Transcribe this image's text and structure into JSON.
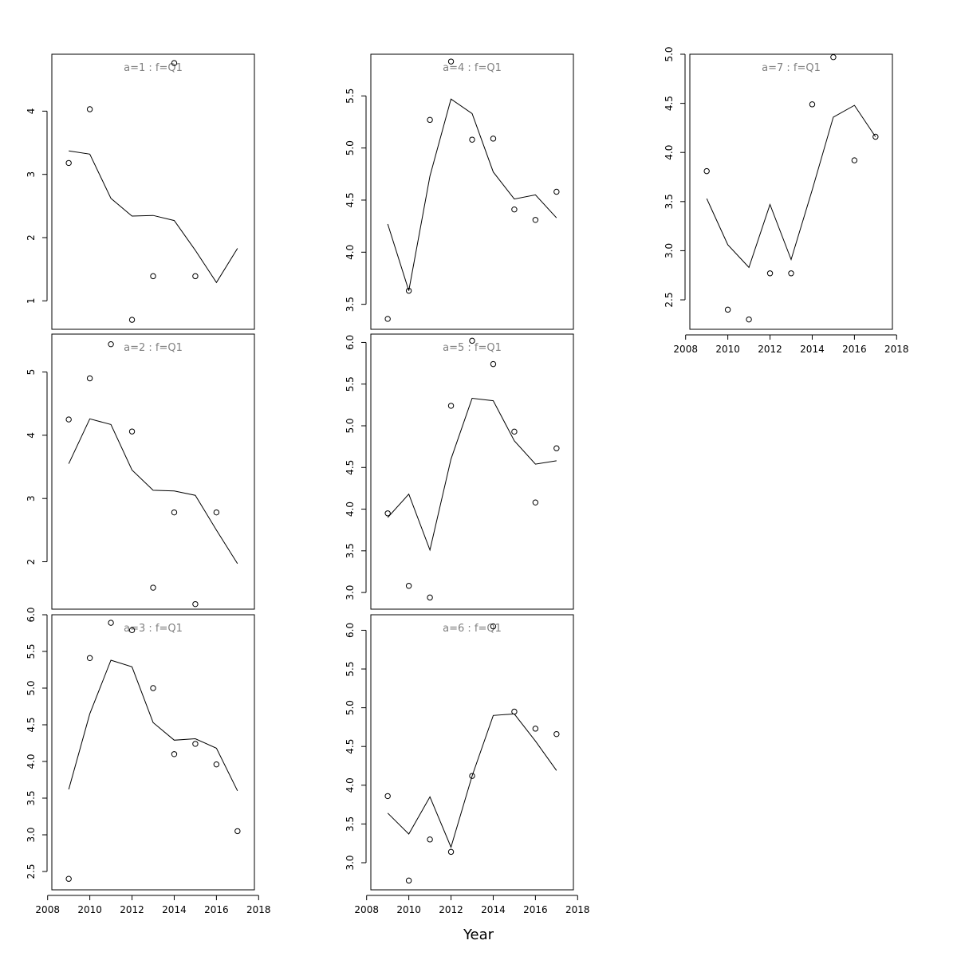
{
  "chart_data": {
    "type": "scatter",
    "xlabel": "Year",
    "x_ticks": [
      2008,
      2010,
      2012,
      2014,
      2016,
      2018
    ],
    "xlim": [
      2008.2,
      2017.8
    ],
    "panels": [
      {
        "title": "a=1 : f=Q1",
        "ylim": [
          0.55,
          4.9
        ],
        "y_ticks": [
          "1",
          "2",
          "3",
          "4"
        ],
        "y_tick_values": [
          1,
          2,
          3,
          4
        ],
        "points": [
          [
            2009,
            3.18
          ],
          [
            2010,
            4.03
          ],
          [
            2012,
            0.7
          ],
          [
            2013,
            1.39
          ],
          [
            2014,
            4.76
          ],
          [
            2015,
            1.39
          ]
        ],
        "fit": [
          [
            2009,
            3.37
          ],
          [
            2010,
            3.32
          ],
          [
            2011,
            2.62
          ],
          [
            2012,
            2.34
          ],
          [
            2013,
            2.35
          ],
          [
            2014,
            2.27
          ],
          [
            2015,
            1.8
          ],
          [
            2016,
            1.29
          ],
          [
            2017,
            1.83
          ]
        ]
      },
      {
        "title": "a=2 : f=Q1",
        "ylim": [
          1.25,
          5.6
        ],
        "y_ticks": [
          "2",
          "3",
          "4",
          "5"
        ],
        "y_tick_values": [
          2,
          3,
          4,
          5
        ],
        "points": [
          [
            2009,
            4.25
          ],
          [
            2010,
            4.9
          ],
          [
            2011,
            5.44
          ],
          [
            2012,
            4.06
          ],
          [
            2013,
            1.59
          ],
          [
            2014,
            2.78
          ],
          [
            2015,
            1.33
          ],
          [
            2016,
            2.78
          ]
        ],
        "fit": [
          [
            2009,
            3.55
          ],
          [
            2010,
            4.26
          ],
          [
            2011,
            4.17
          ],
          [
            2012,
            3.45
          ],
          [
            2013,
            3.13
          ],
          [
            2014,
            3.12
          ],
          [
            2015,
            3.05
          ],
          [
            2016,
            2.5
          ],
          [
            2017,
            1.97
          ]
        ]
      },
      {
        "title": "a=3 : f=Q1",
        "ylim": [
          2.25,
          6.0
        ],
        "y_ticks": [
          "2.5",
          "3.0",
          "3.5",
          "4.0",
          "4.5",
          "5.0",
          "5.5",
          "6.0"
        ],
        "y_tick_values": [
          2.5,
          3.0,
          3.5,
          4.0,
          4.5,
          5.0,
          5.5,
          6.0
        ],
        "points": [
          [
            2009,
            2.4
          ],
          [
            2010,
            5.41
          ],
          [
            2011,
            5.89
          ],
          [
            2012,
            5.79
          ],
          [
            2013,
            5.0
          ],
          [
            2014,
            4.1
          ],
          [
            2015,
            4.24
          ],
          [
            2016,
            3.96
          ],
          [
            2017,
            3.05
          ]
        ],
        "fit": [
          [
            2009,
            3.62
          ],
          [
            2010,
            4.65
          ],
          [
            2011,
            5.38
          ],
          [
            2012,
            5.29
          ],
          [
            2013,
            4.53
          ],
          [
            2014,
            4.29
          ],
          [
            2015,
            4.31
          ],
          [
            2016,
            4.18
          ],
          [
            2017,
            3.6
          ]
        ]
      },
      {
        "title": "a=4 : f=Q1",
        "ylim": [
          3.26,
          5.9
        ],
        "y_ticks": [
          "3.5",
          "4.0",
          "4.5",
          "5.0",
          "5.5"
        ],
        "y_tick_values": [
          3.5,
          4.0,
          4.5,
          5.0,
          5.5
        ],
        "points": [
          [
            2009,
            3.36
          ],
          [
            2010,
            3.63
          ],
          [
            2011,
            5.27
          ],
          [
            2012,
            5.83
          ],
          [
            2013,
            5.08
          ],
          [
            2014,
            5.09
          ],
          [
            2015,
            4.41
          ],
          [
            2016,
            4.31
          ],
          [
            2017,
            4.58
          ]
        ],
        "fit": [
          [
            2009,
            4.27
          ],
          [
            2010,
            3.63
          ],
          [
            2011,
            4.73
          ],
          [
            2012,
            5.47
          ],
          [
            2013,
            5.33
          ],
          [
            2014,
            4.77
          ],
          [
            2015,
            4.51
          ],
          [
            2016,
            4.55
          ],
          [
            2017,
            4.33
          ]
        ]
      },
      {
        "title": "a=5 : f=Q1",
        "ylim": [
          2.8,
          6.1
        ],
        "y_ticks": [
          "3.0",
          "3.5",
          "4.0",
          "4.5",
          "5.0",
          "5.5",
          "6.0"
        ],
        "y_tick_values": [
          3.0,
          3.5,
          4.0,
          4.5,
          5.0,
          5.5,
          6.0
        ],
        "points": [
          [
            2009,
            3.95
          ],
          [
            2010,
            3.08
          ],
          [
            2011,
            2.94
          ],
          [
            2012,
            5.24
          ],
          [
            2013,
            6.02
          ],
          [
            2014,
            5.74
          ],
          [
            2015,
            4.93
          ],
          [
            2016,
            4.08
          ],
          [
            2017,
            4.73
          ]
        ],
        "fit": [
          [
            2009,
            3.9
          ],
          [
            2010,
            4.18
          ],
          [
            2011,
            3.51
          ],
          [
            2012,
            4.6
          ],
          [
            2013,
            5.33
          ],
          [
            2014,
            5.3
          ],
          [
            2015,
            4.82
          ],
          [
            2016,
            4.54
          ],
          [
            2017,
            4.58
          ]
        ]
      },
      {
        "title": "a=6 : f=Q1",
        "ylim": [
          2.65,
          6.2
        ],
        "y_ticks": [
          "3.0",
          "3.5",
          "4.0",
          "4.5",
          "5.0",
          "5.5",
          "6.0"
        ],
        "y_tick_values": [
          3.0,
          3.5,
          4.0,
          4.5,
          5.0,
          5.5,
          6.0
        ],
        "points": [
          [
            2009,
            3.86
          ],
          [
            2010,
            2.77
          ],
          [
            2011,
            3.3
          ],
          [
            2012,
            3.14
          ],
          [
            2013,
            4.12
          ],
          [
            2014,
            6.05
          ],
          [
            2015,
            4.95
          ],
          [
            2016,
            4.73
          ],
          [
            2017,
            4.66
          ]
        ],
        "fit": [
          [
            2009,
            3.64
          ],
          [
            2010,
            3.37
          ],
          [
            2011,
            3.85
          ],
          [
            2012,
            3.2
          ],
          [
            2013,
            4.12
          ],
          [
            2014,
            4.9
          ],
          [
            2015,
            4.92
          ],
          [
            2016,
            4.57
          ],
          [
            2017,
            4.19
          ]
        ]
      },
      {
        "title": "a=7 : f=Q1",
        "ylim": [
          2.2,
          5.0
        ],
        "y_ticks": [
          "2.5",
          "3.0",
          "3.5",
          "4.0",
          "4.5",
          "5.0"
        ],
        "y_tick_values": [
          2.5,
          3.0,
          3.5,
          4.0,
          4.5,
          5.0
        ],
        "points": [
          [
            2009,
            3.81
          ],
          [
            2010,
            2.4
          ],
          [
            2011,
            2.3
          ],
          [
            2012,
            2.77
          ],
          [
            2013,
            2.77
          ],
          [
            2014,
            4.49
          ],
          [
            2015,
            4.97
          ],
          [
            2016,
            3.92
          ],
          [
            2017,
            4.16
          ]
        ],
        "fit": [
          [
            2009,
            3.53
          ],
          [
            2010,
            3.06
          ],
          [
            2011,
            2.83
          ],
          [
            2012,
            3.47
          ],
          [
            2013,
            2.91
          ],
          [
            2014,
            3.62
          ],
          [
            2015,
            4.36
          ],
          [
            2016,
            4.48
          ],
          [
            2017,
            4.16
          ]
        ]
      }
    ]
  }
}
